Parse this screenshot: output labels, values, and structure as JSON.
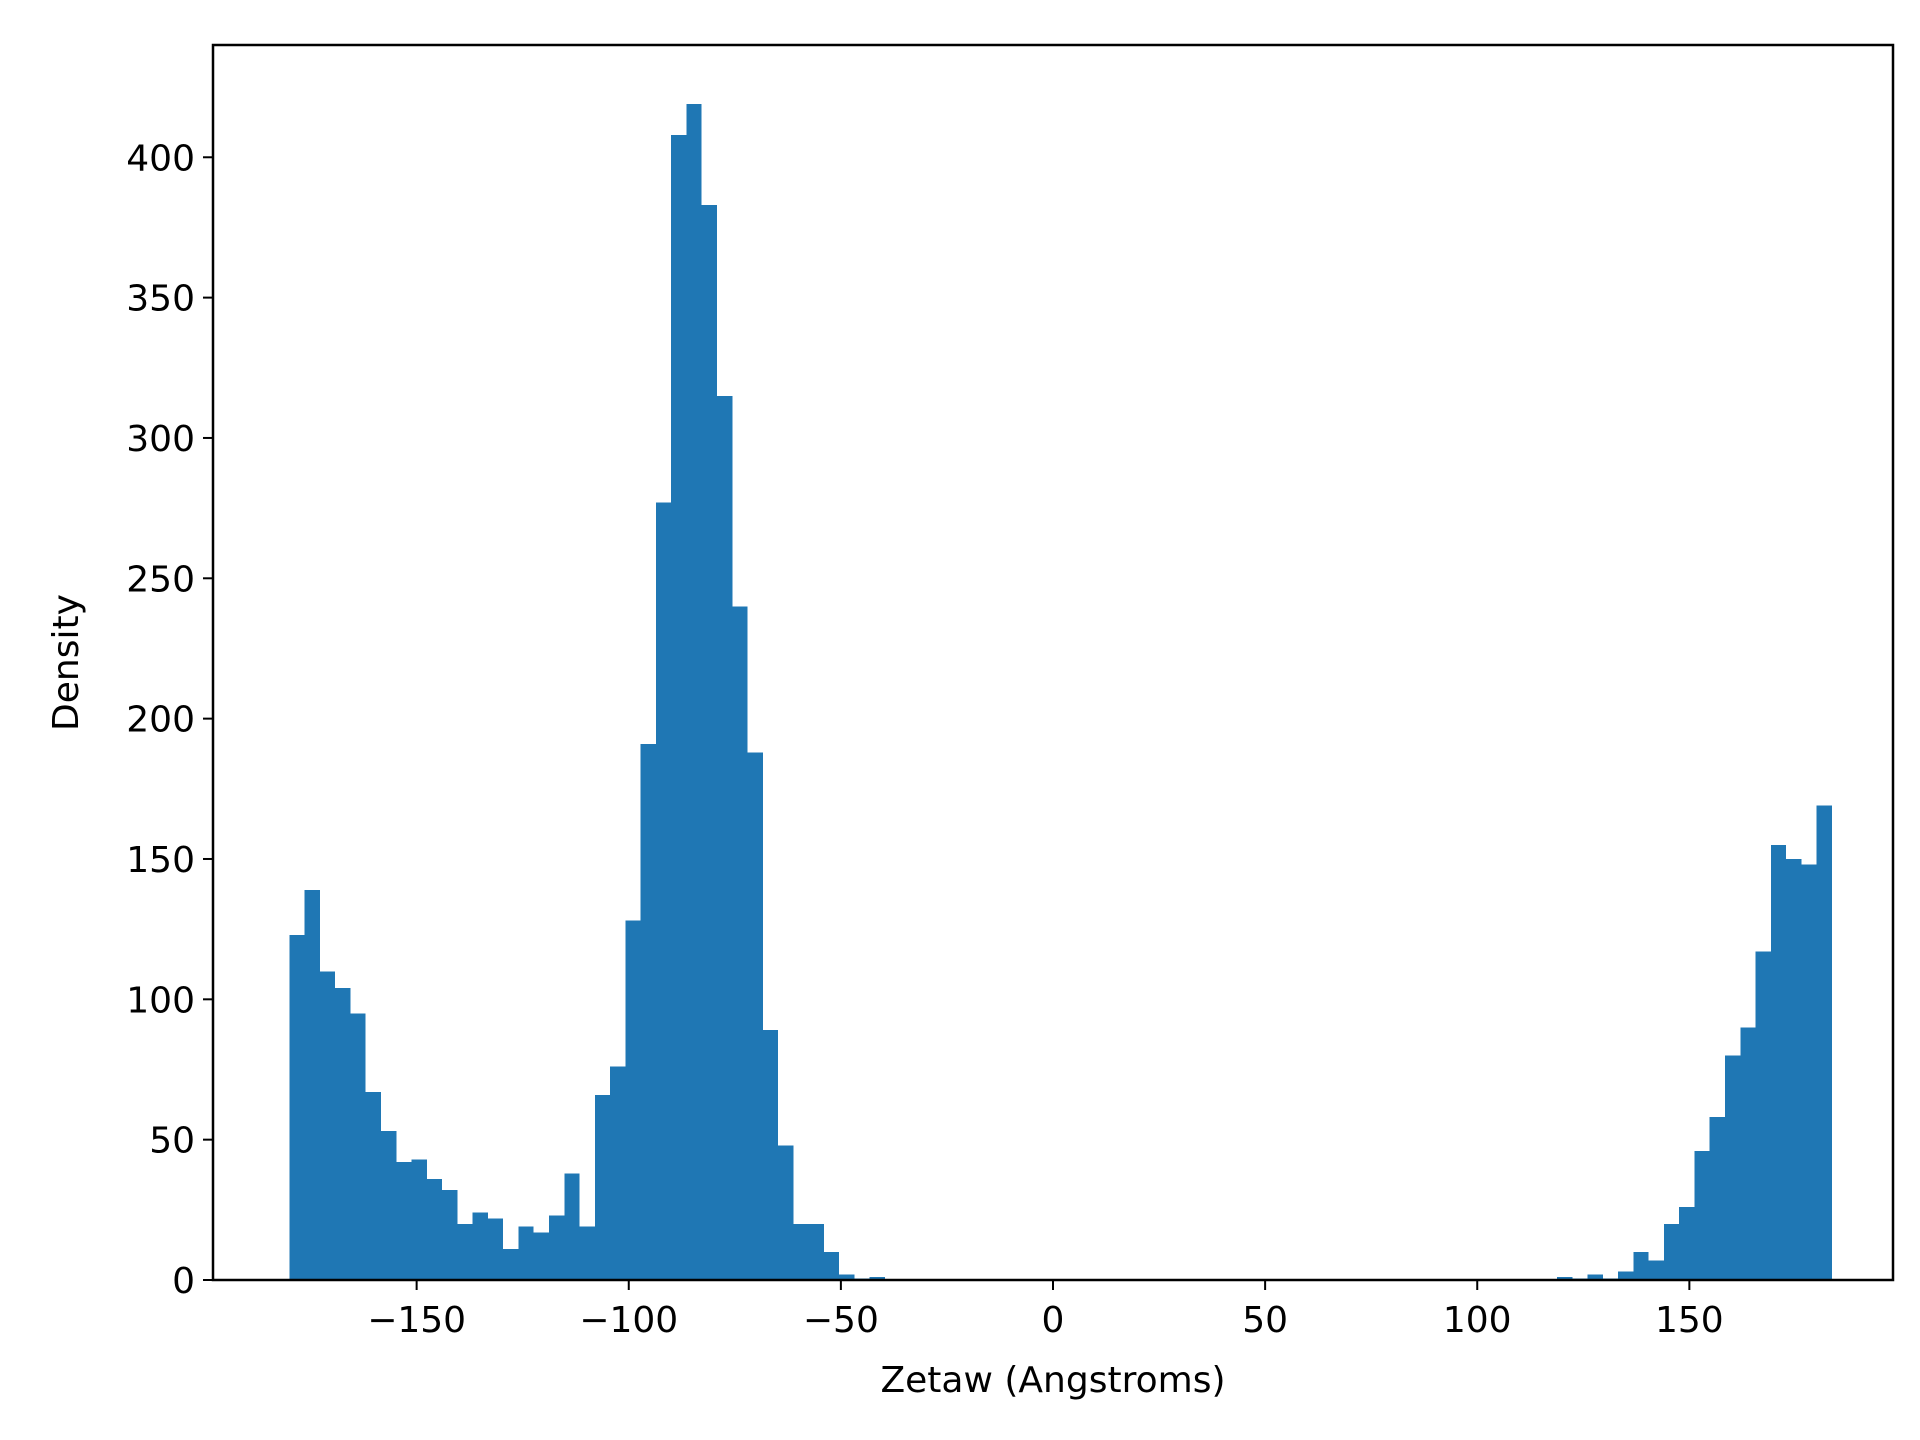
{
  "chart_data": {
    "type": "bar",
    "title": "",
    "xlabel": "Zetaw (Angstroms)",
    "ylabel": "Density",
    "xlim": [
      -198,
      198
    ],
    "ylim": [
      0,
      440
    ],
    "bar_color": "#1f77b4",
    "bin_width": 3.6,
    "bins": [
      {
        "x": -180.0,
        "v": 123
      },
      {
        "x": -176.4,
        "v": 139
      },
      {
        "x": -172.8,
        "v": 110
      },
      {
        "x": -169.2,
        "v": 104
      },
      {
        "x": -165.6,
        "v": 95
      },
      {
        "x": -162.0,
        "v": 67
      },
      {
        "x": -158.4,
        "v": 53
      },
      {
        "x": -154.8,
        "v": 42
      },
      {
        "x": -151.2,
        "v": 43
      },
      {
        "x": -147.6,
        "v": 36
      },
      {
        "x": -144.0,
        "v": 32
      },
      {
        "x": -140.4,
        "v": 20
      },
      {
        "x": -136.8,
        "v": 24
      },
      {
        "x": -133.2,
        "v": 22
      },
      {
        "x": -129.6,
        "v": 11
      },
      {
        "x": -126.0,
        "v": 19
      },
      {
        "x": -122.4,
        "v": 17
      },
      {
        "x": -118.8,
        "v": 23
      },
      {
        "x": -115.2,
        "v": 38
      },
      {
        "x": -111.6,
        "v": 19
      },
      {
        "x": -108.0,
        "v": 66
      },
      {
        "x": -104.4,
        "v": 76
      },
      {
        "x": -100.8,
        "v": 128
      },
      {
        "x": -97.2,
        "v": 191
      },
      {
        "x": -93.6,
        "v": 277
      },
      {
        "x": -90.0,
        "v": 408
      },
      {
        "x": -86.4,
        "v": 419
      },
      {
        "x": -82.8,
        "v": 383
      },
      {
        "x": -79.2,
        "v": 315
      },
      {
        "x": -75.6,
        "v": 240
      },
      {
        "x": -72.0,
        "v": 188
      },
      {
        "x": -68.4,
        "v": 89
      },
      {
        "x": -64.8,
        "v": 48
      },
      {
        "x": -61.2,
        "v": 20
      },
      {
        "x": -57.6,
        "v": 20
      },
      {
        "x": -54.0,
        "v": 10
      },
      {
        "x": -50.4,
        "v": 2
      },
      {
        "x": -46.8,
        "v": 0.5
      },
      {
        "x": -43.2,
        "v": 1
      },
      {
        "x": 118.8,
        "v": 1
      },
      {
        "x": 122.4,
        "v": 0.5
      },
      {
        "x": 126.0,
        "v": 2
      },
      {
        "x": 129.6,
        "v": 0.5
      },
      {
        "x": 133.2,
        "v": 3
      },
      {
        "x": 136.8,
        "v": 10
      },
      {
        "x": 140.4,
        "v": 7
      },
      {
        "x": 144.0,
        "v": 20
      },
      {
        "x": 147.6,
        "v": 26
      },
      {
        "x": 151.2,
        "v": 46
      },
      {
        "x": 154.8,
        "v": 58
      },
      {
        "x": 158.4,
        "v": 80
      },
      {
        "x": 162.0,
        "v": 90
      },
      {
        "x": 165.6,
        "v": 117
      },
      {
        "x": 169.2,
        "v": 155
      },
      {
        "x": 172.8,
        "v": 150
      },
      {
        "x": 176.4,
        "v": 148
      },
      {
        "x": 180.0,
        "v": 169
      }
    ],
    "x_ticks": [
      {
        "value": -150,
        "label": "−150"
      },
      {
        "value": -100,
        "label": "−100"
      },
      {
        "value": -50,
        "label": "−50"
      },
      {
        "value": 0,
        "label": "0"
      },
      {
        "value": 50,
        "label": "50"
      },
      {
        "value": 100,
        "label": "100"
      },
      {
        "value": 150,
        "label": "150"
      }
    ],
    "y_ticks": [
      {
        "value": 0,
        "label": "0"
      },
      {
        "value": 50,
        "label": "50"
      },
      {
        "value": 100,
        "label": "100"
      },
      {
        "value": 150,
        "label": "150"
      },
      {
        "value": 200,
        "label": "200"
      },
      {
        "value": 250,
        "label": "250"
      },
      {
        "value": 300,
        "label": "300"
      },
      {
        "value": 350,
        "label": "350"
      },
      {
        "value": 400,
        "label": "400"
      }
    ],
    "grid": false,
    "legend": "none"
  }
}
